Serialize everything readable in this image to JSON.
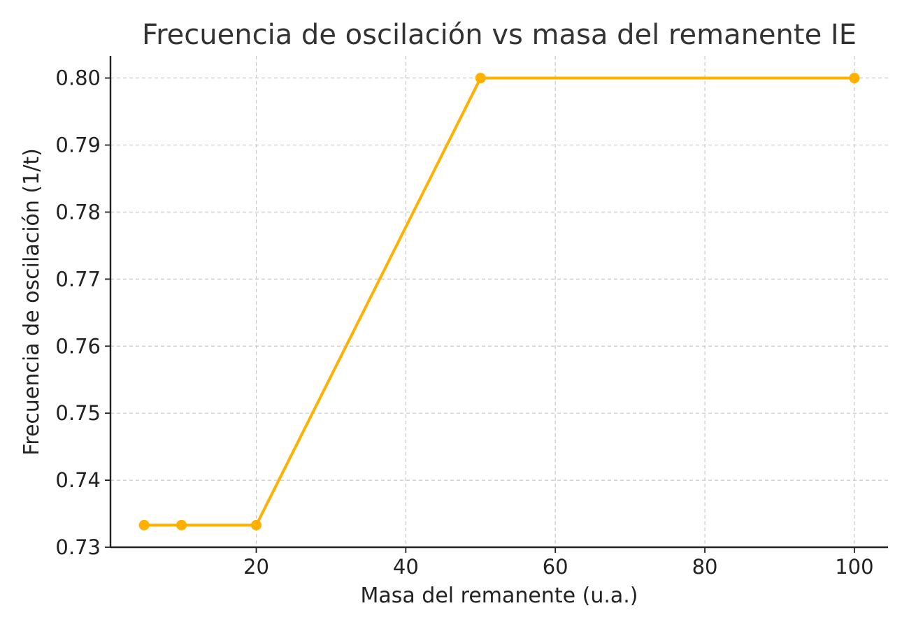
{
  "chart_data": {
    "type": "line",
    "title": "Frecuencia de oscilación vs masa del remanente IE",
    "xlabel": "Masa del remanente (u.a.)",
    "ylabel": "Frecuencia de oscilación (1/t)",
    "xlim": [
      0.5,
      104.5
    ],
    "ylim": [
      0.73,
      0.8033
    ],
    "xticks": [
      20,
      40,
      60,
      80,
      100
    ],
    "yticks": [
      0.73,
      0.74,
      0.75,
      0.76,
      0.77,
      0.78,
      0.79,
      0.8
    ],
    "ytick_decimals": 2,
    "grid": true,
    "series": [
      {
        "color": "#ffb000",
        "marker": "circle",
        "x": [
          5,
          10,
          20,
          50,
          100
        ],
        "y": [
          0.7333,
          0.7333,
          0.7333,
          0.8,
          0.8
        ]
      }
    ]
  }
}
